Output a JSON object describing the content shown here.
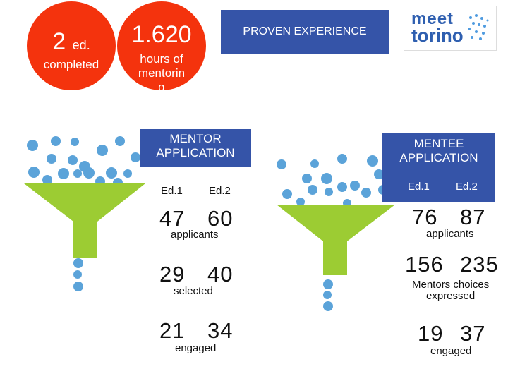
{
  "stats": [
    {
      "value": "2",
      "unit": "ed.",
      "label": "completed"
    },
    {
      "value": "1.620",
      "label_lines": [
        "hours of",
        "mentorin",
        "g"
      ]
    }
  ],
  "banner_top": "PROVEN EXPERIENCE",
  "logo": {
    "line1": "meet",
    "line2": "torino"
  },
  "mentor": {
    "title_lines": [
      "MENTOR",
      "APPLICATION"
    ],
    "ed1": "Ed.1",
    "ed2": "Ed.2",
    "applicants": {
      "v1": "47",
      "v2": "60",
      "label": "applicants"
    },
    "selected": {
      "v1": "29",
      "v2": "40",
      "label": "selected"
    },
    "engaged": {
      "v1": "21",
      "v2": "34",
      "label": "engaged"
    }
  },
  "mentee": {
    "title_lines": [
      "MENTEE",
      "APPLICATION"
    ],
    "ed1": "Ed.1",
    "ed2": "Ed.2",
    "applicants": {
      "v1": "76",
      "v2": "87",
      "label": "applicants"
    },
    "choices": {
      "v1": "156",
      "v2": "235",
      "label_lines": [
        "Mentors choices",
        "expressed"
      ]
    },
    "engaged": {
      "v1": "19",
      "v2": "37",
      "label": "engaged"
    }
  },
  "colors": {
    "accent_red": "#f4330d",
    "banner_blue": "#3554a8",
    "funnel_green": "#9ccc33",
    "bubble_blue": "#5ba3d9"
  }
}
